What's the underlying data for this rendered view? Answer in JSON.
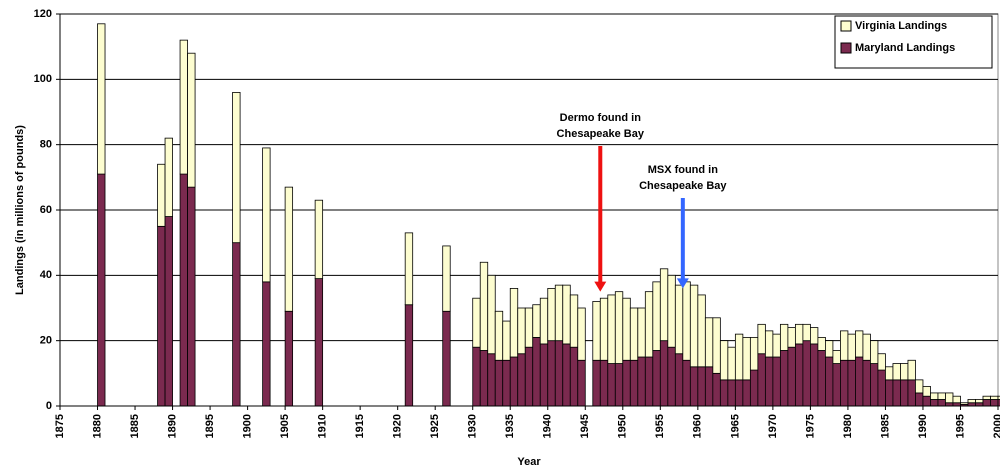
{
  "chart_data": {
    "type": "stacked-bar",
    "y_label": "Landings (in millions of pounds)",
    "x_label": "Year",
    "x": [
      1880,
      1888,
      1889,
      1891,
      1892,
      1898,
      1902,
      1905,
      1909,
      1921,
      1926,
      1930,
      1931,
      1932,
      1933,
      1934,
      1935,
      1936,
      1937,
      1938,
      1939,
      1940,
      1941,
      1942,
      1943,
      1944,
      1946,
      1947,
      1948,
      1949,
      1950,
      1951,
      1952,
      1953,
      1954,
      1955,
      1956,
      1957,
      1958,
      1959,
      1960,
      1961,
      1962,
      1963,
      1964,
      1965,
      1966,
      1967,
      1968,
      1969,
      1970,
      1971,
      1972,
      1973,
      1974,
      1975,
      1976,
      1977,
      1978,
      1979,
      1980,
      1981,
      1982,
      1983,
      1984,
      1985,
      1986,
      1987,
      1988,
      1989,
      1990,
      1991,
      1992,
      1993,
      1994,
      1995,
      1996,
      1997,
      1998,
      1999,
      2000
    ],
    "series": [
      {
        "name": "Maryland Landings",
        "color": "#7b2a4f",
        "values": [
          71,
          55,
          58,
          71,
          67,
          50,
          38,
          29,
          39,
          31,
          29,
          18,
          17,
          16,
          14,
          14,
          15,
          16,
          18,
          21,
          19,
          20,
          20,
          19,
          18,
          14,
          14,
          14,
          13,
          13,
          14,
          14,
          15,
          15,
          17,
          20,
          18,
          16,
          14,
          12,
          12,
          12,
          10,
          8,
          8,
          8,
          8,
          11,
          16,
          15,
          15,
          17,
          18,
          19,
          20,
          19,
          17,
          15,
          13,
          14,
          14,
          15,
          14,
          13,
          11,
          8,
          8,
          8,
          8,
          4,
          3,
          2,
          2,
          1,
          1,
          0.5,
          1,
          1,
          2,
          2,
          2
        ]
      },
      {
        "name": "Virginia Landings",
        "color": "#fdfdd0",
        "values": [
          46,
          19,
          24,
          41,
          41,
          46,
          41,
          38,
          24,
          22,
          20,
          15,
          27,
          24,
          15,
          12,
          21,
          14,
          12,
          10,
          14,
          16,
          17,
          18,
          16,
          16,
          18,
          19,
          21,
          22,
          19,
          16,
          15,
          20,
          21,
          22,
          22,
          21,
          24,
          25,
          22,
          15,
          17,
          12,
          10,
          14,
          13,
          10,
          9,
          8,
          7,
          8,
          6,
          6,
          5,
          5,
          4,
          5,
          4,
          9,
          8,
          8,
          8,
          7,
          5,
          4,
          5,
          5,
          6,
          4,
          3,
          2,
          2,
          3,
          2,
          0.5,
          1,
          1,
          1,
          1,
          1
        ]
      }
    ],
    "xlim": [
      1875,
      2000
    ],
    "xticks": [
      1875,
      1880,
      1885,
      1890,
      1895,
      1900,
      1905,
      1910,
      1915,
      1920,
      1925,
      1930,
      1935,
      1940,
      1945,
      1950,
      1955,
      1960,
      1965,
      1970,
      1975,
      1980,
      1985,
      1990,
      1995,
      2000
    ],
    "ylim": [
      0,
      120
    ],
    "yticks": [
      0,
      20,
      40,
      60,
      80,
      100,
      120
    ],
    "grid": true,
    "legend": "upper-right",
    "annotations": [
      {
        "lines": [
          "Dermo found in",
          "Chesapeake Bay"
        ],
        "x": 1947,
        "y": 35,
        "color": "#ee1111"
      },
      {
        "lines": [
          "MSX found in",
          "Chesapeake Bay"
        ],
        "x": 1958,
        "y": 36,
        "color": "#3366ff"
      }
    ]
  }
}
